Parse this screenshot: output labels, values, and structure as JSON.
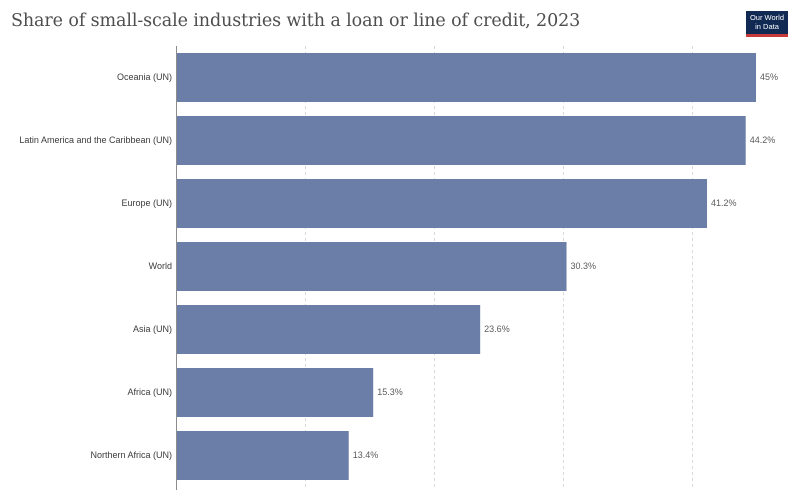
{
  "title": "Share of small-scale industries with a loan or line of credit, 2023",
  "logo": {
    "line1": "Our World",
    "line2": "in Data",
    "bg_color": "#102a54",
    "accent_color": "#c73a3a"
  },
  "colors": {
    "bar": "#6a7ea8",
    "grid": "#d9d9d9",
    "axis": "#8c8c8c"
  },
  "chart_data": {
    "type": "bar",
    "orientation": "horizontal",
    "title": "Share of small-scale industries with a loan or line of credit, 2023",
    "categories": [
      "Oceania (UN)",
      "Latin America and the Caribbean (UN)",
      "Europe (UN)",
      "World",
      "Asia (UN)",
      "Africa (UN)",
      "Northern Africa (UN)"
    ],
    "values": [
      45,
      44.2,
      41.2,
      30.3,
      23.6,
      15.3,
      13.4
    ],
    "value_labels": [
      "45%",
      "44.2%",
      "41.2%",
      "30.3%",
      "23.6%",
      "15.3%",
      "13.4%"
    ],
    "unit": "%",
    "xlim": [
      0,
      45
    ],
    "xgrid_values": [
      10,
      20,
      30,
      40
    ],
    "grid": true,
    "legend": "none"
  }
}
